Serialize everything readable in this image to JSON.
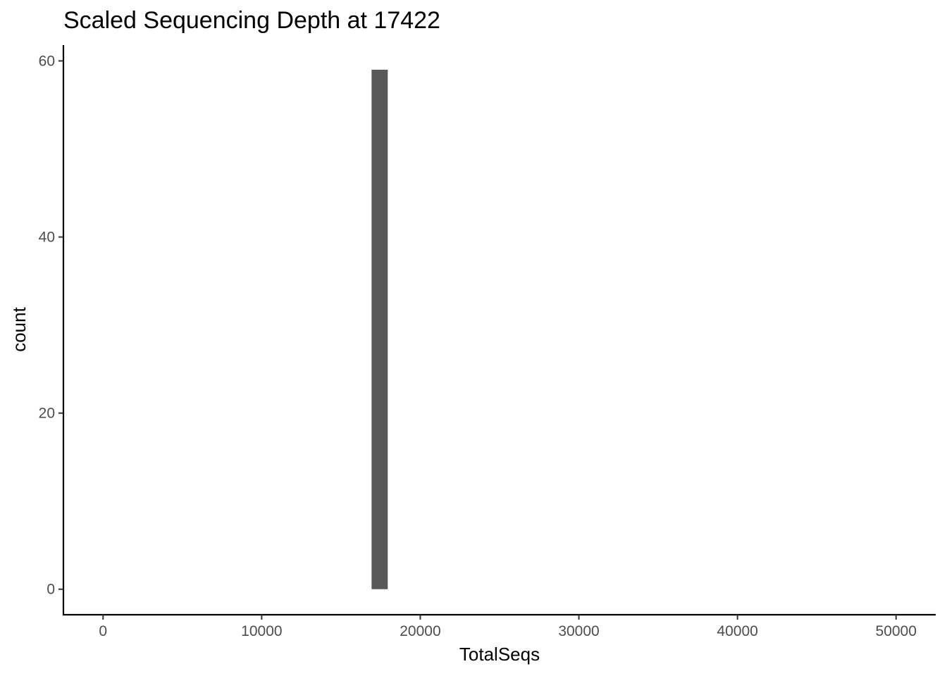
{
  "chart_data": {
    "type": "bar",
    "title": "Scaled Sequencing Depth at 17422",
    "xlabel": "TotalSeqs",
    "ylabel": "count",
    "xlim": [
      -2500,
      52500
    ],
    "ylim": [
      -2.9,
      61.8
    ],
    "x_ticks": [
      0,
      10000,
      20000,
      30000,
      40000,
      50000
    ],
    "x_tick_labels": [
      "0",
      "10000",
      "20000",
      "30000",
      "40000",
      "50000"
    ],
    "y_ticks": [
      0,
      20,
      40,
      60
    ],
    "y_tick_labels": [
      "0",
      "20",
      "40",
      "60"
    ],
    "grid": false,
    "legend": "none",
    "bar_color": "#595959",
    "bins": [
      {
        "x_start": 16930,
        "x_end": 17950,
        "count": 59
      }
    ]
  }
}
